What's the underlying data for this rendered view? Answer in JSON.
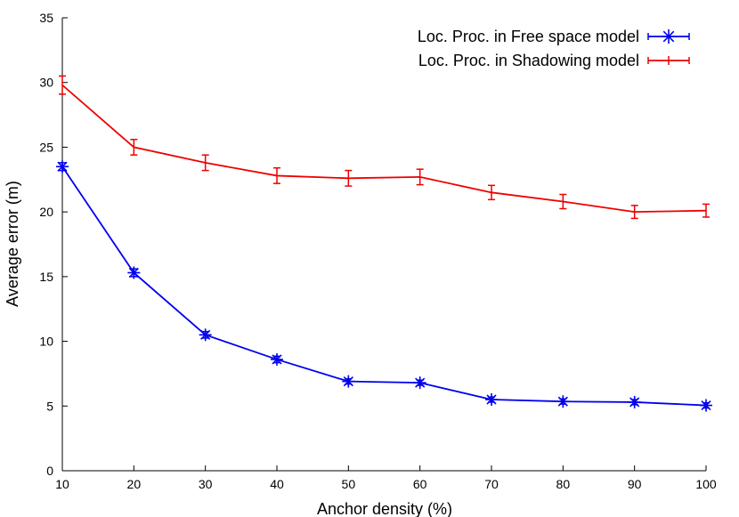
{
  "chart_data": {
    "type": "line",
    "xlabel": "Anchor density (%)",
    "ylabel": "Average error (m)",
    "xlim": [
      10,
      100
    ],
    "ylim": [
      0,
      35
    ],
    "xticks": [
      "10",
      "20",
      "30",
      "40",
      "50",
      "60",
      "70",
      "80",
      "90",
      "100"
    ],
    "yticks": [
      "0",
      "5",
      "10",
      "15",
      "20",
      "25",
      "30",
      "35"
    ],
    "grid": false,
    "legend_position": "top-right",
    "x": [
      10,
      20,
      30,
      40,
      50,
      60,
      70,
      80,
      90,
      100
    ],
    "series": [
      {
        "name": "Loc. Proc. in Free space model",
        "color": "#0000ee",
        "marker": "asterisk",
        "values": [
          23.5,
          15.3,
          10.5,
          8.6,
          6.9,
          6.8,
          5.5,
          5.35,
          5.3,
          5.05
        ],
        "errors": [
          0.3,
          0.3,
          0.25,
          0.25,
          0.2,
          0.2,
          0.2,
          0.2,
          0.2,
          0.2
        ]
      },
      {
        "name": "Loc. Proc. in Shadowing model",
        "color": "#ee0000",
        "marker": "errorbar",
        "values": [
          29.8,
          25.0,
          23.8,
          22.8,
          22.6,
          22.7,
          21.5,
          20.8,
          20.0,
          20.1
        ],
        "errors": [
          0.7,
          0.6,
          0.6,
          0.6,
          0.6,
          0.6,
          0.55,
          0.55,
          0.5,
          0.5
        ]
      }
    ]
  }
}
